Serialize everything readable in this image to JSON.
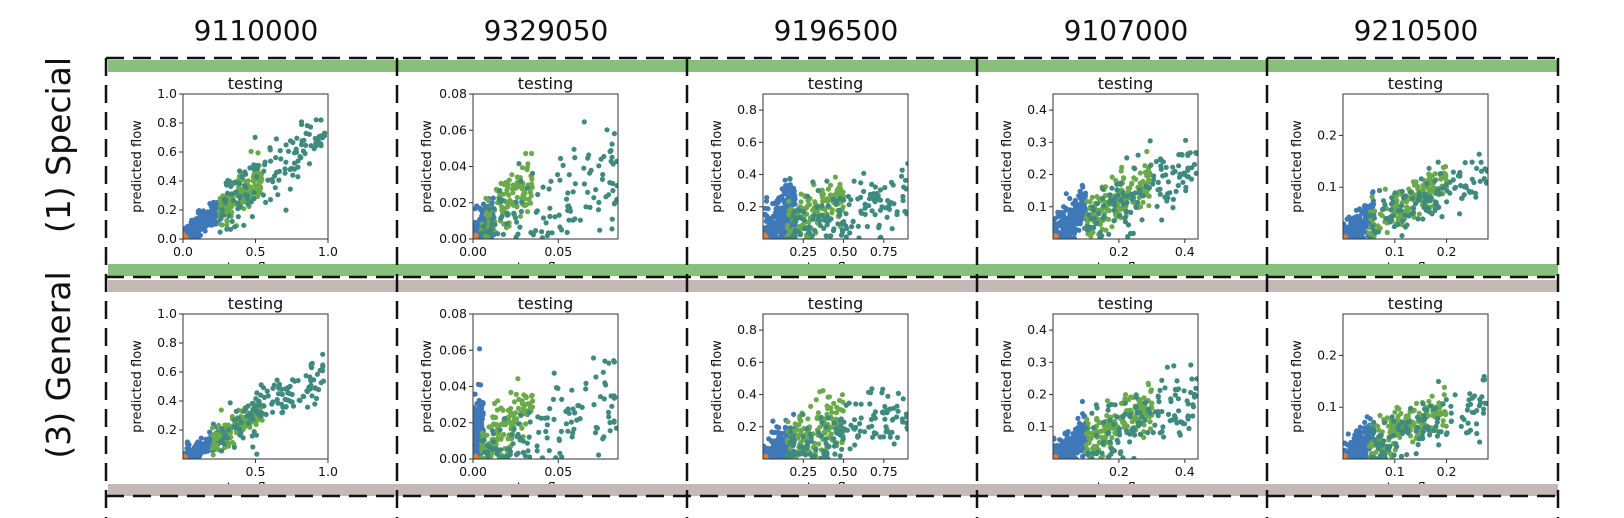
{
  "columns": [
    "9110000",
    "9329050",
    "9196500",
    "9107000",
    "9210500"
  ],
  "rows": [
    {
      "label": "(1) Special",
      "band_color": "#86c07a"
    },
    {
      "label": "(3) General",
      "band_color": "#c5b8b5"
    }
  ],
  "colors": {
    "blue": "#3e78b8",
    "green": "#6aaa4a",
    "teal": "#3f8a80",
    "orange": "#e07b39",
    "frame": "#111111"
  },
  "chart_data": [
    {
      "type": "scatter",
      "row": 0,
      "col": 0,
      "title": "testing",
      "xlabel": "true flow",
      "ylabel": "predicted flow",
      "xlim": [
        0,
        1.0
      ],
      "ylim": [
        0,
        1.0
      ],
      "xticks": [
        "0.0",
        "0.5",
        "1.0"
      ],
      "xtick_values": [
        0,
        0.5,
        1.0
      ],
      "yticks": [
        "0.0",
        "0.2",
        "0.4",
        "0.6",
        "0.8",
        "1.0"
      ],
      "ytick_values": [
        0,
        0.2,
        0.4,
        0.6,
        0.8,
        1.0
      ],
      "series": [
        {
          "color": "blue",
          "x_range": [
            0.0,
            0.25
          ],
          "slope": 0.85,
          "spread": 0.04,
          "n": 220
        },
        {
          "color": "green",
          "x_range": [
            0.25,
            0.55
          ],
          "slope": 0.8,
          "spread": 0.06,
          "n": 140
        },
        {
          "color": "teal",
          "x_range": [
            0.25,
            0.98
          ],
          "slope": 0.75,
          "spread": 0.1,
          "n": 130
        },
        {
          "color": "orange",
          "x_range": [
            0.0,
            0.02
          ],
          "slope": 0.5,
          "spread": 0.01,
          "n": 12
        }
      ]
    },
    {
      "type": "scatter",
      "row": 0,
      "col": 1,
      "title": "testing",
      "xlabel": "true flow",
      "ylabel": "predicted flow",
      "xlim": [
        0,
        0.085
      ],
      "ylim": [
        0,
        0.08
      ],
      "xticks": [
        "0.00",
        "0.05"
      ],
      "xtick_values": [
        0,
        0.05
      ],
      "yticks": [
        "0.00",
        "0.02",
        "0.04",
        "0.06",
        "0.08"
      ],
      "ytick_values": [
        0,
        0.02,
        0.04,
        0.06,
        0.08
      ],
      "series": [
        {
          "color": "blue",
          "x_range": [
            0.0,
            0.012
          ],
          "slope": 1.1,
          "spread": 0.005,
          "n": 200
        },
        {
          "color": "green",
          "x_range": [
            0.005,
            0.035
          ],
          "slope": 0.9,
          "spread": 0.008,
          "n": 120
        },
        {
          "color": "teal",
          "x_range": [
            0.005,
            0.085
          ],
          "slope": 0.5,
          "spread": 0.015,
          "n": 120
        },
        {
          "color": "orange",
          "x_range": [
            0.0,
            0.002
          ],
          "slope": 0.5,
          "spread": 0.001,
          "n": 10
        }
      ]
    },
    {
      "type": "scatter",
      "row": 0,
      "col": 2,
      "title": "testing",
      "xlabel": "true flow",
      "ylabel": "predicted flow",
      "xlim": [
        0,
        0.9
      ],
      "ylim": [
        0,
        0.9
      ],
      "xticks": [
        "0.25",
        "0.50",
        "0.75"
      ],
      "xtick_values": [
        0.25,
        0.5,
        0.75
      ],
      "yticks": [
        "0.2",
        "0.4",
        "0.6",
        "0.8"
      ],
      "ytick_values": [
        0.2,
        0.4,
        0.6,
        0.8
      ],
      "series": [
        {
          "color": "blue",
          "x_range": [
            0.0,
            0.2
          ],
          "slope": 1.0,
          "spread": 0.1,
          "n": 260
        },
        {
          "color": "green",
          "x_range": [
            0.15,
            0.5
          ],
          "slope": 0.5,
          "spread": 0.08,
          "n": 140
        },
        {
          "color": "teal",
          "x_range": [
            0.15,
            0.9
          ],
          "slope": 0.3,
          "spread": 0.1,
          "n": 140
        },
        {
          "color": "orange",
          "x_range": [
            0.0,
            0.02
          ],
          "slope": 0.5,
          "spread": 0.01,
          "n": 10
        }
      ]
    },
    {
      "type": "scatter",
      "row": 0,
      "col": 3,
      "title": "testing",
      "xlabel": "true flow",
      "ylabel": "predicted flow",
      "xlim": [
        0,
        0.44
      ],
      "ylim": [
        0,
        0.45
      ],
      "xticks": [
        "0.2",
        "0.4"
      ],
      "xtick_values": [
        0.2,
        0.4
      ],
      "yticks": [
        "0.1",
        "0.2",
        "0.3",
        "0.4"
      ],
      "ytick_values": [
        0.1,
        0.2,
        0.3,
        0.4
      ],
      "series": [
        {
          "color": "blue",
          "x_range": [
            0.0,
            0.1
          ],
          "slope": 1.0,
          "spread": 0.03,
          "n": 240
        },
        {
          "color": "green",
          "x_range": [
            0.1,
            0.3
          ],
          "slope": 0.6,
          "spread": 0.04,
          "n": 160
        },
        {
          "color": "teal",
          "x_range": [
            0.1,
            0.44
          ],
          "slope": 0.5,
          "spread": 0.05,
          "n": 130
        },
        {
          "color": "orange",
          "x_range": [
            0.0,
            0.01
          ],
          "slope": 0.5,
          "spread": 0.005,
          "n": 10
        }
      ]
    },
    {
      "type": "scatter",
      "row": 0,
      "col": 4,
      "title": "testing",
      "xlabel": "true flow",
      "ylabel": "predicted flow",
      "xlim": [
        0,
        0.28
      ],
      "ylim": [
        0,
        0.28
      ],
      "xticks": [
        "0.1",
        "0.2"
      ],
      "xtick_values": [
        0.1,
        0.2
      ],
      "yticks": [
        "0.1",
        "0.2"
      ],
      "ytick_values": [
        0.1,
        0.2
      ],
      "series": [
        {
          "color": "blue",
          "x_range": [
            0.0,
            0.06
          ],
          "slope": 0.9,
          "spread": 0.015,
          "n": 220
        },
        {
          "color": "green",
          "x_range": [
            0.05,
            0.2
          ],
          "slope": 0.55,
          "spread": 0.02,
          "n": 160
        },
        {
          "color": "teal",
          "x_range": [
            0.05,
            0.28
          ],
          "slope": 0.45,
          "spread": 0.025,
          "n": 120
        },
        {
          "color": "orange",
          "x_range": [
            0.0,
            0.005
          ],
          "slope": 0.5,
          "spread": 0.003,
          "n": 10
        }
      ]
    },
    {
      "type": "scatter",
      "row": 1,
      "col": 0,
      "title": "testing",
      "xlabel": "true flow",
      "ylabel": "predicted flow",
      "xlim": [
        0,
        1.0
      ],
      "ylim": [
        0,
        1.0
      ],
      "xticks": [
        "0.5",
        "1.0"
      ],
      "xtick_values": [
        0.5,
        1.0
      ],
      "yticks": [
        "0.2",
        "0.4",
        "0.6",
        "0.8",
        "1.0"
      ],
      "ytick_values": [
        0.2,
        0.4,
        0.6,
        0.8,
        1.0
      ],
      "series": [
        {
          "color": "blue",
          "x_range": [
            0.0,
            0.25
          ],
          "slope": 0.6,
          "spread": 0.03,
          "n": 220
        },
        {
          "color": "green",
          "x_range": [
            0.2,
            0.55
          ],
          "slope": 0.6,
          "spread": 0.05,
          "n": 140
        },
        {
          "color": "teal",
          "x_range": [
            0.25,
            0.98
          ],
          "slope": 0.6,
          "spread": 0.08,
          "n": 130
        },
        {
          "color": "orange",
          "x_range": [
            0.0,
            0.02
          ],
          "slope": 0.5,
          "spread": 0.01,
          "n": 12
        }
      ]
    },
    {
      "type": "scatter",
      "row": 1,
      "col": 1,
      "title": "testing",
      "xlabel": "true flow",
      "ylabel": "predicted flow",
      "xlim": [
        0,
        0.085
      ],
      "ylim": [
        0,
        0.08
      ],
      "xticks": [
        "0.00",
        "0.05"
      ],
      "xtick_values": [
        0,
        0.05
      ],
      "yticks": [
        "0.00",
        "0.02",
        "0.04",
        "0.06",
        "0.08"
      ],
      "ytick_values": [
        0,
        0.02,
        0.04,
        0.06,
        0.08
      ],
      "series": [
        {
          "color": "blue",
          "x_range": [
            0.0,
            0.006
          ],
          "slope": 4.0,
          "spread": 0.012,
          "n": 220
        },
        {
          "color": "green",
          "x_range": [
            0.005,
            0.035
          ],
          "slope": 0.9,
          "spread": 0.008,
          "n": 130
        },
        {
          "color": "teal",
          "x_range": [
            0.005,
            0.085
          ],
          "slope": 0.4,
          "spread": 0.012,
          "n": 120
        },
        {
          "color": "orange",
          "x_range": [
            0.0,
            0.002
          ],
          "slope": 0.5,
          "spread": 0.001,
          "n": 10
        }
      ]
    },
    {
      "type": "scatter",
      "row": 1,
      "col": 2,
      "title": "testing",
      "xlabel": "true flow",
      "ylabel": "predicted flow",
      "xlim": [
        0,
        0.9
      ],
      "ylim": [
        0,
        0.9
      ],
      "xticks": [
        "0.25",
        "0.50",
        "0.75"
      ],
      "xtick_values": [
        0.25,
        0.5,
        0.75
      ],
      "yticks": [
        "0.2",
        "0.4",
        "0.6",
        "0.8"
      ],
      "ytick_values": [
        0.2,
        0.4,
        0.6,
        0.8
      ],
      "series": [
        {
          "color": "blue",
          "x_range": [
            0.0,
            0.2
          ],
          "slope": 0.6,
          "spread": 0.06,
          "n": 240
        },
        {
          "color": "green",
          "x_range": [
            0.15,
            0.5
          ],
          "slope": 0.5,
          "spread": 0.08,
          "n": 140
        },
        {
          "color": "teal",
          "x_range": [
            0.15,
            0.9
          ],
          "slope": 0.3,
          "spread": 0.09,
          "n": 140
        },
        {
          "color": "orange",
          "x_range": [
            0.0,
            0.02
          ],
          "slope": 0.5,
          "spread": 0.01,
          "n": 10
        }
      ]
    },
    {
      "type": "scatter",
      "row": 1,
      "col": 3,
      "title": "testing",
      "xlabel": "true flow",
      "ylabel": "predicted flow",
      "xlim": [
        0,
        0.44
      ],
      "ylim": [
        0,
        0.45
      ],
      "xticks": [
        "0.2",
        "0.4"
      ],
      "xtick_values": [
        0.2,
        0.4
      ],
      "yticks": [
        "0.1",
        "0.2",
        "0.3",
        "0.4"
      ],
      "ytick_values": [
        0.1,
        0.2,
        0.3,
        0.4
      ],
      "series": [
        {
          "color": "blue",
          "x_range": [
            0.0,
            0.1
          ],
          "slope": 0.8,
          "spread": 0.025,
          "n": 240
        },
        {
          "color": "green",
          "x_range": [
            0.1,
            0.3
          ],
          "slope": 0.55,
          "spread": 0.04,
          "n": 160
        },
        {
          "color": "teal",
          "x_range": [
            0.1,
            0.44
          ],
          "slope": 0.45,
          "spread": 0.05,
          "n": 130
        },
        {
          "color": "orange",
          "x_range": [
            0.0,
            0.01
          ],
          "slope": 0.5,
          "spread": 0.005,
          "n": 10
        }
      ]
    },
    {
      "type": "scatter",
      "row": 1,
      "col": 4,
      "title": "testing",
      "xlabel": "true flow",
      "ylabel": "predicted flow",
      "xlim": [
        0,
        0.28
      ],
      "ylim": [
        0,
        0.28
      ],
      "xticks": [
        "0.1",
        "0.2"
      ],
      "xtick_values": [
        0.1,
        0.2
      ],
      "yticks": [
        "0.1",
        "0.2"
      ],
      "ytick_values": [
        0.1,
        0.2
      ],
      "series": [
        {
          "color": "blue",
          "x_range": [
            0.0,
            0.06
          ],
          "slope": 0.8,
          "spread": 0.015,
          "n": 220
        },
        {
          "color": "green",
          "x_range": [
            0.05,
            0.2
          ],
          "slope": 0.5,
          "spread": 0.02,
          "n": 160
        },
        {
          "color": "teal",
          "x_range": [
            0.05,
            0.28
          ],
          "slope": 0.4,
          "spread": 0.025,
          "n": 120
        },
        {
          "color": "orange",
          "x_range": [
            0.0,
            0.005
          ],
          "slope": 0.5,
          "spread": 0.003,
          "n": 10
        }
      ]
    }
  ]
}
